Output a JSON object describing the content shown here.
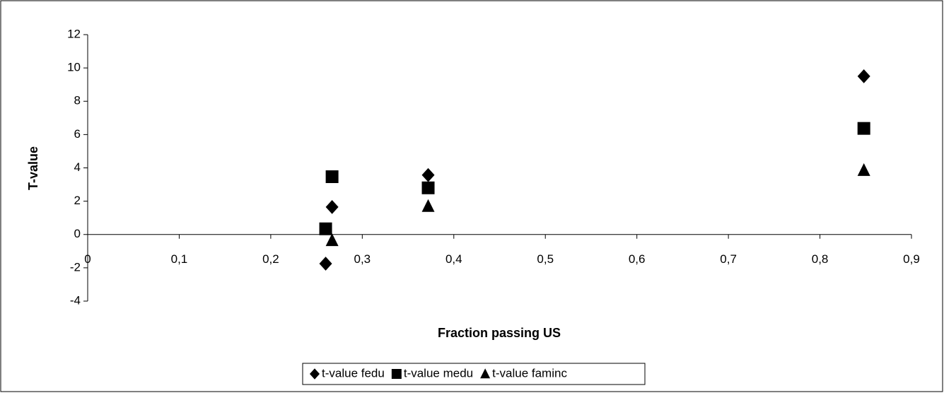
{
  "chart_data": {
    "type": "scatter",
    "x_label": "Fraction passing US",
    "y_label": "T-value",
    "xlim": [
      0,
      0.9
    ],
    "xticks": [
      {
        "value": 0,
        "label": "0"
      },
      {
        "value": 0.1,
        "label": "0,1"
      },
      {
        "value": 0.2,
        "label": "0,2"
      },
      {
        "value": 0.3,
        "label": "0,3"
      },
      {
        "value": 0.4,
        "label": "0,4"
      },
      {
        "value": 0.5,
        "label": "0,5"
      },
      {
        "value": 0.6,
        "label": "0,6"
      },
      {
        "value": 0.7,
        "label": "0,7"
      },
      {
        "value": 0.8,
        "label": "0,8"
      },
      {
        "value": 0.9,
        "label": "0,9"
      }
    ],
    "ylim": [
      -4,
      12
    ],
    "yticks": [
      -4,
      -2,
      0,
      2,
      4,
      6,
      8,
      10,
      12
    ],
    "grid": false,
    "legend": "bottom",
    "series": [
      {
        "name": "t-value fedu",
        "color": "#000000",
        "marker": "diamond",
        "x": [
          0.26,
          0.267,
          0.372,
          0.848
        ],
        "values": [
          -1.75,
          1.65,
          3.57,
          9.5
        ]
      },
      {
        "name": "t-value medu",
        "color": "#000000",
        "marker": "square",
        "x": [
          0.26,
          0.267,
          0.372,
          0.848
        ],
        "values": [
          0.34,
          3.47,
          2.8,
          6.37
        ]
      },
      {
        "name": "t-value faminc",
        "color": "#000000",
        "marker": "triangle",
        "x": [
          0.267,
          0.372,
          0.848
        ],
        "values": [
          -0.35,
          1.7,
          3.86
        ]
      }
    ]
  }
}
